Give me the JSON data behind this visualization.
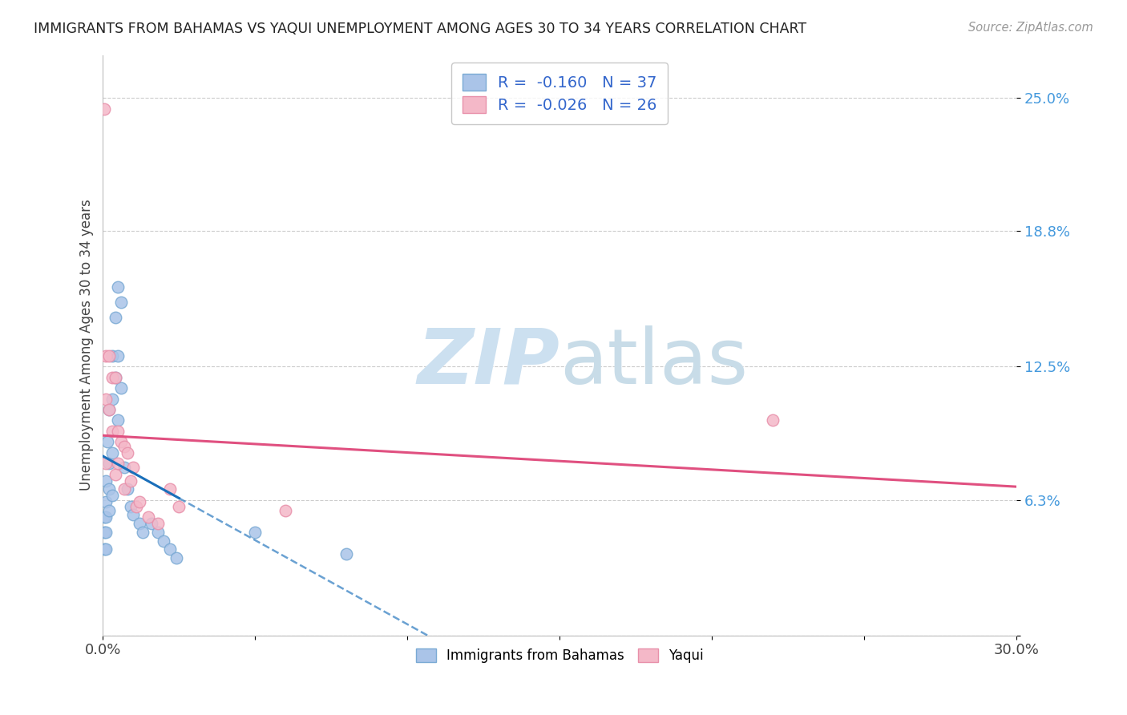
{
  "title": "IMMIGRANTS FROM BAHAMAS VS YAQUI UNEMPLOYMENT AMONG AGES 30 TO 34 YEARS CORRELATION CHART",
  "source": "Source: ZipAtlas.com",
  "ylabel": "Unemployment Among Ages 30 to 34 years",
  "xlim": [
    0,
    0.3
  ],
  "ylim": [
    0,
    0.27
  ],
  "xtick_positions": [
    0.0,
    0.05,
    0.1,
    0.15,
    0.2,
    0.25,
    0.3
  ],
  "xticklabels": [
    "0.0%",
    "",
    "",
    "",
    "",
    "",
    "30.0%"
  ],
  "ytick_positions": [
    0.0,
    0.063,
    0.125,
    0.188,
    0.25
  ],
  "ytick_labels": [
    "",
    "6.3%",
    "12.5%",
    "18.8%",
    "25.0%"
  ],
  "grid_color": "#cccccc",
  "background_color": "#ffffff",
  "series1_label": "Immigrants from Bahamas",
  "series1_color": "#aac4e8",
  "series1_edge_color": "#7aaad4",
  "series1_R": "-0.160",
  "series1_N": "37",
  "series2_label": "Yaqui",
  "series2_color": "#f4b8c8",
  "series2_edge_color": "#e890aa",
  "series2_R": "-0.026",
  "series2_N": "26",
  "series1_x": [
    0.0005,
    0.0005,
    0.0005,
    0.001,
    0.001,
    0.001,
    0.001,
    0.001,
    0.0015,
    0.002,
    0.002,
    0.002,
    0.002,
    0.003,
    0.003,
    0.003,
    0.003,
    0.004,
    0.004,
    0.005,
    0.005,
    0.005,
    0.006,
    0.006,
    0.007,
    0.008,
    0.009,
    0.01,
    0.012,
    0.013,
    0.016,
    0.018,
    0.02,
    0.022,
    0.024,
    0.05,
    0.08
  ],
  "series1_y": [
    0.055,
    0.048,
    0.04,
    0.072,
    0.062,
    0.055,
    0.048,
    0.04,
    0.09,
    0.105,
    0.08,
    0.068,
    0.058,
    0.13,
    0.11,
    0.085,
    0.065,
    0.148,
    0.12,
    0.162,
    0.13,
    0.1,
    0.155,
    0.115,
    0.078,
    0.068,
    0.06,
    0.056,
    0.052,
    0.048,
    0.052,
    0.048,
    0.044,
    0.04,
    0.036,
    0.048,
    0.038
  ],
  "series2_x": [
    0.0005,
    0.001,
    0.001,
    0.001,
    0.002,
    0.002,
    0.003,
    0.003,
    0.004,
    0.004,
    0.005,
    0.005,
    0.006,
    0.007,
    0.007,
    0.008,
    0.009,
    0.01,
    0.011,
    0.012,
    0.015,
    0.018,
    0.022,
    0.025,
    0.22,
    0.06
  ],
  "series2_y": [
    0.245,
    0.13,
    0.11,
    0.08,
    0.13,
    0.105,
    0.12,
    0.095,
    0.12,
    0.075,
    0.095,
    0.08,
    0.09,
    0.088,
    0.068,
    0.085,
    0.072,
    0.078,
    0.06,
    0.062,
    0.055,
    0.052,
    0.068,
    0.06,
    0.1,
    0.058
  ],
  "trendline1_color": "#1a6fba",
  "trendline2_color": "#e05080",
  "watermark_zip_color": "#cce0f0",
  "watermark_atlas_color": "#c8dce8",
  "legend_text_color": "#3366cc",
  "marker_size": 110,
  "trendline_lw": 2.2
}
